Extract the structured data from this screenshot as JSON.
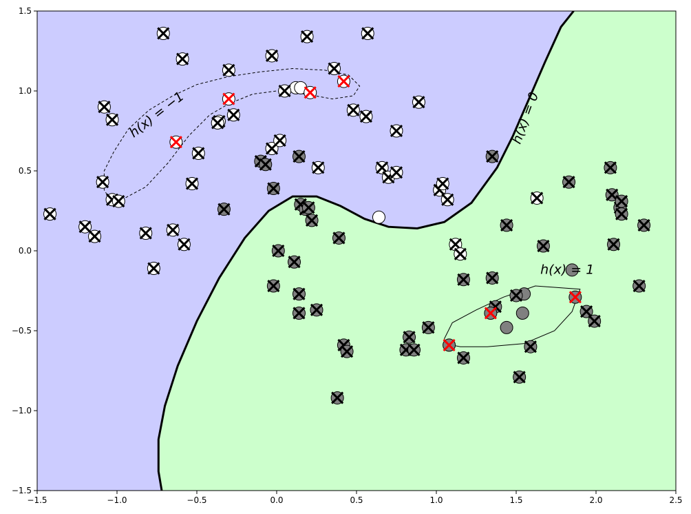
{
  "chart_data": {
    "type": "scatter",
    "title": "",
    "xlabel": "",
    "ylabel": "",
    "xlim": [
      -1.5,
      2.5
    ],
    "ylim": [
      -1.5,
      1.5
    ],
    "xticks": [
      -1.5,
      -1.0,
      -0.5,
      0.0,
      0.5,
      1.0,
      1.5,
      2.0,
      2.5
    ],
    "yticks": [
      -1.5,
      -1.0,
      -0.5,
      0.0,
      0.5,
      1.0,
      1.5
    ],
    "xtick_labels": [
      "−1.5",
      "−1.0",
      "−0.5",
      "0.0",
      "0.5",
      "1.0",
      "1.5",
      "2.0",
      "2.5"
    ],
    "ytick_labels": [
      "−1.5",
      "−1.0",
      "−0.5",
      "0.0",
      "0.5",
      "1.0",
      "1.5"
    ],
    "grid": false,
    "colors": {
      "region_negative": "#ccccff",
      "region_positive": "#ccffcc",
      "class_negative": "#ffffff",
      "class_positive": "#808080",
      "cross": "#000000",
      "highlight_cross": "#ff0000",
      "boundary": "#000000"
    },
    "contour_labels": [
      {
        "text": "h(x) = −1",
        "x": -0.75,
        "y": 0.85,
        "angle": -38
      },
      {
        "text": "h(x) = 0",
        "x": 1.56,
        "y": 0.83,
        "angle": -70
      },
      {
        "text": "h(x) = 1",
        "x": 1.82,
        "y": -0.12,
        "angle": 0
      }
    ],
    "boundary_h0": [
      [
        -0.72,
        -1.5
      ],
      [
        -0.74,
        -1.38
      ],
      [
        -0.74,
        -1.18
      ],
      [
        -0.7,
        -0.97
      ],
      [
        -0.62,
        -0.72
      ],
      [
        -0.5,
        -0.44
      ],
      [
        -0.36,
        -0.17
      ],
      [
        -0.2,
        0.08
      ],
      [
        -0.05,
        0.25
      ],
      [
        0.1,
        0.34
      ],
      [
        0.25,
        0.34
      ],
      [
        0.4,
        0.28
      ],
      [
        0.55,
        0.2
      ],
      [
        0.7,
        0.15
      ],
      [
        0.88,
        0.14
      ],
      [
        1.05,
        0.18
      ],
      [
        1.22,
        0.3
      ],
      [
        1.38,
        0.52
      ],
      [
        1.48,
        0.72
      ],
      [
        1.58,
        0.95
      ],
      [
        1.68,
        1.18
      ],
      [
        1.78,
        1.4
      ],
      [
        1.86,
        1.5
      ]
    ],
    "contour_neg1": [
      [
        -1.03,
        0.3
      ],
      [
        -1.08,
        0.38
      ],
      [
        -1.08,
        0.5
      ],
      [
        -1.02,
        0.62
      ],
      [
        -0.93,
        0.76
      ],
      [
        -0.8,
        0.88
      ],
      [
        -0.65,
        0.97
      ],
      [
        -0.5,
        1.04
      ],
      [
        -0.3,
        1.09
      ],
      [
        -0.1,
        1.12
      ],
      [
        0.1,
        1.14
      ],
      [
        0.3,
        1.13
      ],
      [
        0.45,
        1.1
      ],
      [
        0.52,
        1.03
      ],
      [
        0.48,
        0.97
      ],
      [
        0.35,
        0.95
      ],
      [
        0.18,
        0.98
      ],
      [
        0.0,
        1.0
      ],
      [
        -0.15,
        0.98
      ],
      [
        -0.3,
        0.92
      ],
      [
        -0.42,
        0.85
      ],
      [
        -0.55,
        0.72
      ],
      [
        -0.68,
        0.55
      ],
      [
        -0.82,
        0.4
      ],
      [
        -0.95,
        0.33
      ],
      [
        -1.03,
        0.3
      ]
    ],
    "contour_pos1": [
      [
        1.05,
        -0.55
      ],
      [
        1.1,
        -0.45
      ],
      [
        1.25,
        -0.37
      ],
      [
        1.42,
        -0.29
      ],
      [
        1.62,
        -0.22
      ],
      [
        1.9,
        -0.24
      ],
      [
        1.85,
        -0.38
      ],
      [
        1.74,
        -0.5
      ],
      [
        1.55,
        -0.58
      ],
      [
        1.32,
        -0.6
      ],
      [
        1.15,
        -0.6
      ],
      [
        1.05,
        -0.58
      ],
      [
        1.05,
        -0.55
      ]
    ],
    "series": [
      {
        "class": "-1",
        "crossed": [
          [
            -1.42,
            0.23
          ],
          [
            -1.2,
            0.15
          ],
          [
            -1.14,
            0.09
          ],
          [
            -1.09,
            0.43
          ],
          [
            -1.03,
            0.32
          ],
          [
            -0.99,
            0.31
          ],
          [
            -1.08,
            0.9
          ],
          [
            -1.03,
            0.82
          ],
          [
            -0.82,
            0.11
          ],
          [
            -0.77,
            -0.11
          ],
          [
            -0.71,
            1.36
          ],
          [
            -0.65,
            0.13
          ],
          [
            -0.59,
            1.2
          ],
          [
            -0.58,
            0.04
          ],
          [
            -0.53,
            0.42
          ],
          [
            -0.49,
            0.61
          ],
          [
            -0.36,
            0.81
          ],
          [
            -0.37,
            0.8
          ],
          [
            -0.3,
            1.13
          ],
          [
            -0.27,
            0.85
          ],
          [
            -0.03,
            0.64
          ],
          [
            0.02,
            0.69
          ],
          [
            -0.03,
            1.22
          ],
          [
            0.05,
            1.0
          ],
          [
            0.19,
            1.34
          ],
          [
            0.26,
            0.52
          ],
          [
            0.36,
            1.14
          ],
          [
            0.48,
            0.88
          ],
          [
            0.56,
            0.84
          ],
          [
            0.57,
            1.36
          ],
          [
            0.66,
            0.52
          ],
          [
            0.7,
            0.46
          ],
          [
            0.75,
            0.49
          ],
          [
            0.75,
            0.75
          ],
          [
            0.89,
            0.93
          ],
          [
            1.02,
            0.38
          ],
          [
            1.04,
            0.42
          ],
          [
            1.07,
            0.32
          ],
          [
            1.12,
            0.04
          ],
          [
            1.15,
            -0.02
          ],
          [
            1.63,
            0.33
          ]
        ],
        "highlighted": [
          [
            -0.63,
            0.68
          ],
          [
            -0.3,
            0.95
          ],
          [
            0.21,
            0.99
          ],
          [
            0.42,
            1.06
          ]
        ],
        "plain": [
          [
            0.12,
            1.02
          ],
          [
            0.15,
            1.02
          ],
          [
            0.64,
            0.21
          ]
        ]
      },
      {
        "class": "+1",
        "crossed": [
          [
            -0.33,
            0.26
          ],
          [
            -0.02,
            0.39
          ],
          [
            -0.1,
            0.56
          ],
          [
            -0.07,
            0.54
          ],
          [
            0.14,
            0.59
          ],
          [
            0.15,
            0.29
          ],
          [
            0.18,
            0.26
          ],
          [
            0.2,
            0.27
          ],
          [
            0.22,
            0.19
          ],
          [
            0.01,
            0.0
          ],
          [
            0.11,
            -0.07
          ],
          [
            -0.02,
            -0.22
          ],
          [
            0.14,
            -0.27
          ],
          [
            0.14,
            -0.39
          ],
          [
            0.25,
            -0.37
          ],
          [
            0.39,
            0.08
          ],
          [
            0.42,
            -0.59
          ],
          [
            0.44,
            -0.63
          ],
          [
            0.38,
            -0.92
          ],
          [
            0.83,
            -0.54
          ],
          [
            0.81,
            -0.62
          ],
          [
            0.86,
            -0.62
          ],
          [
            0.95,
            -0.48
          ],
          [
            1.17,
            -0.18
          ],
          [
            1.17,
            -0.67
          ],
          [
            1.35,
            -0.17
          ],
          [
            1.37,
            -0.35
          ],
          [
            1.35,
            0.59
          ],
          [
            1.44,
            0.16
          ],
          [
            1.5,
            -0.28
          ],
          [
            1.52,
            -0.79
          ],
          [
            1.59,
            -0.6
          ],
          [
            1.67,
            0.03
          ],
          [
            1.83,
            0.43
          ],
          [
            1.94,
            -0.38
          ],
          [
            1.99,
            -0.44
          ],
          [
            2.09,
            0.52
          ],
          [
            2.1,
            0.35
          ],
          [
            2.11,
            0.04
          ],
          [
            2.15,
            0.27
          ],
          [
            2.16,
            0.31
          ],
          [
            2.16,
            0.23
          ],
          [
            2.27,
            -0.22
          ],
          [
            2.3,
            0.16
          ]
        ],
        "highlighted": [
          [
            1.08,
            -0.59
          ],
          [
            1.34,
            -0.39
          ],
          [
            1.87,
            -0.29
          ]
        ],
        "plain": [
          [
            1.44,
            -0.48
          ],
          [
            1.55,
            -0.27
          ],
          [
            1.54,
            -0.39
          ],
          [
            1.85,
            -0.12
          ]
        ]
      }
    ]
  }
}
